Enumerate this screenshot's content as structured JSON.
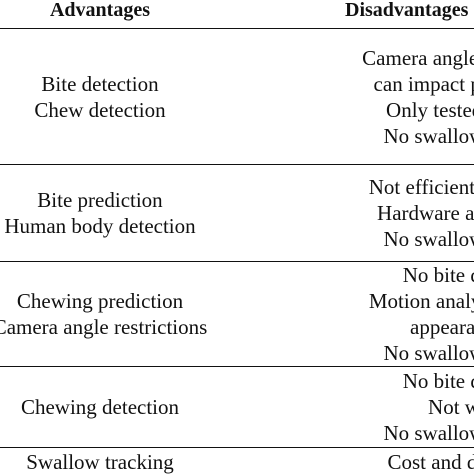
{
  "header": {
    "advantages": "Advantages",
    "disadvantages": "Disadvantages"
  },
  "rows": [
    {
      "advantages": [
        "Bite detection",
        "Chew detection"
      ],
      "disadvantages": [
        "Camera angle and distance",
        "can impact performance",
        "Only tested on adults",
        "No swallow detection"
      ]
    },
    {
      "advantages": [
        "Bite prediction",
        "Human body detection"
      ],
      "disadvantages": [
        "Not efficient for chewing",
        "Hardware and software",
        "No swallow detection"
      ]
    },
    {
      "advantages": [
        "Chewing prediction",
        "Camera angle restrictions"
      ],
      "disadvantages": [
        "No bite detection",
        "Motion analysis outcome",
        "appearance and",
        "No swallow detection"
      ]
    },
    {
      "advantages": [
        "Chewing detection"
      ],
      "disadvantages": [
        "No bite detection",
        "Not widely",
        "No swallow detection"
      ]
    },
    {
      "advantages": [
        "Swallow tracking"
      ],
      "disadvantages": [
        "Cost and dimensions"
      ]
    }
  ]
}
